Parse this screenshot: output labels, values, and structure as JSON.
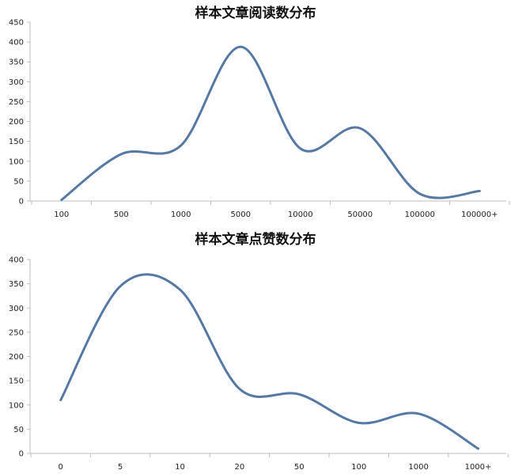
{
  "chart_data": [
    {
      "type": "line",
      "title": "样本文章阅读数分布",
      "categories": [
        "100",
        "500",
        "1000",
        "5000",
        "10000",
        "50000",
        "100000",
        "100000+"
      ],
      "series": [
        {
          "values": [
            3,
            118,
            140,
            388,
            132,
            183,
            18,
            25
          ]
        }
      ],
      "xlabel": "",
      "ylabel": "",
      "ylim": [
        0,
        450
      ],
      "yticks": [
        0,
        50,
        100,
        150,
        200,
        250,
        300,
        350,
        400,
        450
      ],
      "grid": false,
      "smooth": true,
      "color": "#5579a3"
    },
    {
      "type": "line",
      "title": "样本文章点赞数分布",
      "categories": [
        "0",
        "5",
        "10",
        "20",
        "50",
        "100",
        "1000",
        "1000+"
      ],
      "series": [
        {
          "values": [
            110,
            345,
            338,
            133,
            122,
            63,
            82,
            10
          ]
        }
      ],
      "xlabel": "",
      "ylabel": "",
      "ylim": [
        0,
        400
      ],
      "yticks": [
        0,
        50,
        100,
        150,
        200,
        250,
        300,
        350,
        400
      ],
      "grid": false,
      "smooth": true,
      "color": "#5579a3"
    }
  ]
}
